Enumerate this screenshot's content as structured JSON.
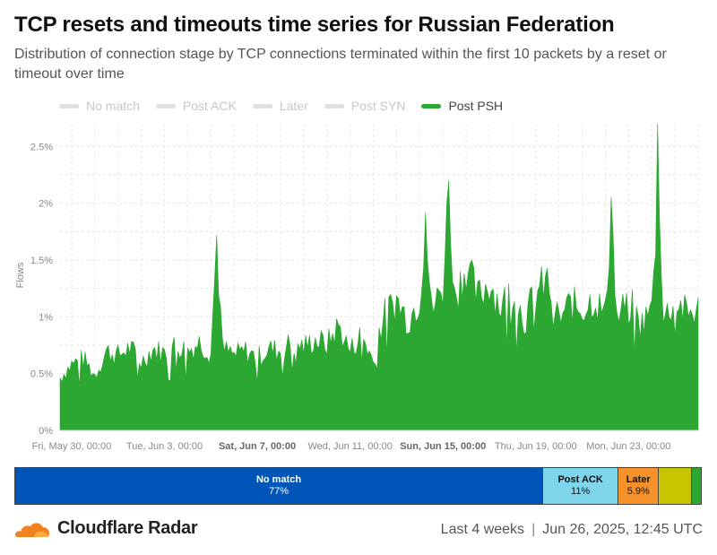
{
  "title": "TCP resets and timeouts time series for Russian Federation",
  "subtitle": "Distribution of connection stage by TCP connections terminated within the first 10 packets by a reset or timeout over time",
  "legend": [
    {
      "label": "No match",
      "color": "#e0e0e0",
      "active": false
    },
    {
      "label": "Post ACK",
      "color": "#e0e0e0",
      "active": false
    },
    {
      "label": "Later",
      "color": "#e0e0e0",
      "active": false
    },
    {
      "label": "Post SYN",
      "color": "#e0e0e0",
      "active": false
    },
    {
      "label": "Post PSH",
      "color": "#2ca832",
      "active": true
    }
  ],
  "chart_data": {
    "type": "area",
    "ylabel": "Flows",
    "ylim": [
      0,
      2.7
    ],
    "y_ticks": [
      {
        "value": 0,
        "label": "0%"
      },
      {
        "value": 0.5,
        "label": "0.5%"
      },
      {
        "value": 1,
        "label": "1%"
      },
      {
        "value": 1.5,
        "label": "1.5%"
      },
      {
        "value": 2,
        "label": "2%"
      },
      {
        "value": 2.5,
        "label": "2.5%"
      }
    ],
    "x_start": "2025-05-29T12:00",
    "x_end": "2025-06-26T00:00",
    "x_ticks": [
      {
        "date": "2025-05-30T00:00",
        "label": "Fri, May 30, 00:00",
        "bold": false
      },
      {
        "date": "2025-06-03T00:00",
        "label": "Tue, Jun 3, 00:00",
        "bold": false
      },
      {
        "date": "2025-06-07T00:00",
        "label": "Sat, Jun 7, 00:00",
        "bold": true
      },
      {
        "date": "2025-06-11T00:00",
        "label": "Wed, Jun 11, 00:00",
        "bold": false
      },
      {
        "date": "2025-06-15T00:00",
        "label": "Sun, Jun 15, 00:00",
        "bold": true
      },
      {
        "date": "2025-06-19T00:00",
        "label": "Thu, Jun 19, 00:00",
        "bold": false
      },
      {
        "date": "2025-06-23T00:00",
        "label": "Mon, Jun 23, 00:00",
        "bold": false
      }
    ],
    "grid": true,
    "series": [
      {
        "name": "Post PSH",
        "color": "#2ca832",
        "points": [
          {
            "x": "2025-05-29T12:00",
            "y": 0.48
          },
          {
            "x": "2025-05-30T00:00",
            "y": 0.6
          },
          {
            "x": "2025-05-30T12:00",
            "y": 0.65
          },
          {
            "x": "2025-05-31T00:00",
            "y": 0.5
          },
          {
            "x": "2025-05-31T12:00",
            "y": 0.72
          },
          {
            "x": "2025-06-01T00:00",
            "y": 0.68
          },
          {
            "x": "2025-06-01T12:00",
            "y": 0.75
          },
          {
            "x": "2025-06-02T00:00",
            "y": 0.62
          },
          {
            "x": "2025-06-02T12:00",
            "y": 0.74
          },
          {
            "x": "2025-06-03T00:00",
            "y": 0.7
          },
          {
            "x": "2025-06-03T12:00",
            "y": 0.78
          },
          {
            "x": "2025-06-04T00:00",
            "y": 0.72
          },
          {
            "x": "2025-06-04T12:00",
            "y": 0.8
          },
          {
            "x": "2025-06-05T00:00",
            "y": 0.7
          },
          {
            "x": "2025-06-05T06:00",
            "y": 1.72
          },
          {
            "x": "2025-06-05T12:00",
            "y": 0.74
          },
          {
            "x": "2025-06-06T00:00",
            "y": 0.68
          },
          {
            "x": "2025-06-06T12:00",
            "y": 0.72
          },
          {
            "x": "2025-06-07T00:00",
            "y": 0.66
          },
          {
            "x": "2025-06-07T12:00",
            "y": 0.74
          },
          {
            "x": "2025-06-08T00:00",
            "y": 0.72
          },
          {
            "x": "2025-06-08T12:00",
            "y": 0.8
          },
          {
            "x": "2025-06-09T00:00",
            "y": 0.76
          },
          {
            "x": "2025-06-09T12:00",
            "y": 0.82
          },
          {
            "x": "2025-06-10T00:00",
            "y": 0.78
          },
          {
            "x": "2025-06-10T12:00",
            "y": 0.95
          },
          {
            "x": "2025-06-11T00:00",
            "y": 0.72
          },
          {
            "x": "2025-06-11T12:00",
            "y": 0.88
          },
          {
            "x": "2025-06-12T00:00",
            "y": 0.62
          },
          {
            "x": "2025-06-12T06:00",
            "y": 0.9
          },
          {
            "x": "2025-06-12T12:00",
            "y": 1.05
          },
          {
            "x": "2025-06-13T00:00",
            "y": 1.18
          },
          {
            "x": "2025-06-13T12:00",
            "y": 1.0
          },
          {
            "x": "2025-06-14T00:00",
            "y": 1.2
          },
          {
            "x": "2025-06-14T06:00",
            "y": 1.92
          },
          {
            "x": "2025-06-14T12:00",
            "y": 1.08
          },
          {
            "x": "2025-06-15T00:00",
            "y": 1.3
          },
          {
            "x": "2025-06-15T06:00",
            "y": 2.2
          },
          {
            "x": "2025-06-15T12:00",
            "y": 1.2
          },
          {
            "x": "2025-06-16T00:00",
            "y": 1.5
          },
          {
            "x": "2025-06-16T12:00",
            "y": 1.2
          },
          {
            "x": "2025-06-17T00:00",
            "y": 1.35
          },
          {
            "x": "2025-06-17T12:00",
            "y": 1.12
          },
          {
            "x": "2025-06-18T00:00",
            "y": 1.3
          },
          {
            "x": "2025-06-18T12:00",
            "y": 1.0
          },
          {
            "x": "2025-06-19T00:00",
            "y": 1.25
          },
          {
            "x": "2025-06-19T12:00",
            "y": 1.35
          },
          {
            "x": "2025-06-20T00:00",
            "y": 1.0
          },
          {
            "x": "2025-06-20T12:00",
            "y": 1.15
          },
          {
            "x": "2025-06-21T00:00",
            "y": 1.1
          },
          {
            "x": "2025-06-21T12:00",
            "y": 1.2
          },
          {
            "x": "2025-06-22T00:00",
            "y": 1.05
          },
          {
            "x": "2025-06-22T06:00",
            "y": 2.05
          },
          {
            "x": "2025-06-22T12:00",
            "y": 1.0
          },
          {
            "x": "2025-06-23T00:00",
            "y": 1.2
          },
          {
            "x": "2025-06-23T12:00",
            "y": 0.95
          },
          {
            "x": "2025-06-24T00:00",
            "y": 1.1
          },
          {
            "x": "2025-06-24T06:00",
            "y": 2.7
          },
          {
            "x": "2025-06-24T12:00",
            "y": 1.0
          },
          {
            "x": "2025-06-25T00:00",
            "y": 1.2
          },
          {
            "x": "2025-06-25T12:00",
            "y": 1.05
          },
          {
            "x": "2025-06-26T00:00",
            "y": 1.1
          }
        ]
      }
    ]
  },
  "summary": [
    {
      "label": "No match",
      "value": "77%",
      "share": 77,
      "color": "#0055b8",
      "text_color": "#ffffff"
    },
    {
      "label": "Post ACK",
      "value": "11%",
      "share": 11,
      "color": "#7fd5ec",
      "text_color": "#111111"
    },
    {
      "label": "Later",
      "value": "5.9%",
      "share": 5.9,
      "color": "#f7922a",
      "text_color": "#111111"
    },
    {
      "label": "",
      "value": "",
      "share": 4.8,
      "color": "#c7c500",
      "text_color": "#111111"
    },
    {
      "label": "",
      "value": "",
      "share": 1.3,
      "color": "#2ca832",
      "text_color": "#111111"
    }
  ],
  "footer": {
    "brand": "Cloudflare Radar",
    "period": "Last 4 weeks",
    "separator": "|",
    "timestamp": "Jun 26, 2025, 12:45 UTC",
    "logo_color": "#f48120"
  }
}
